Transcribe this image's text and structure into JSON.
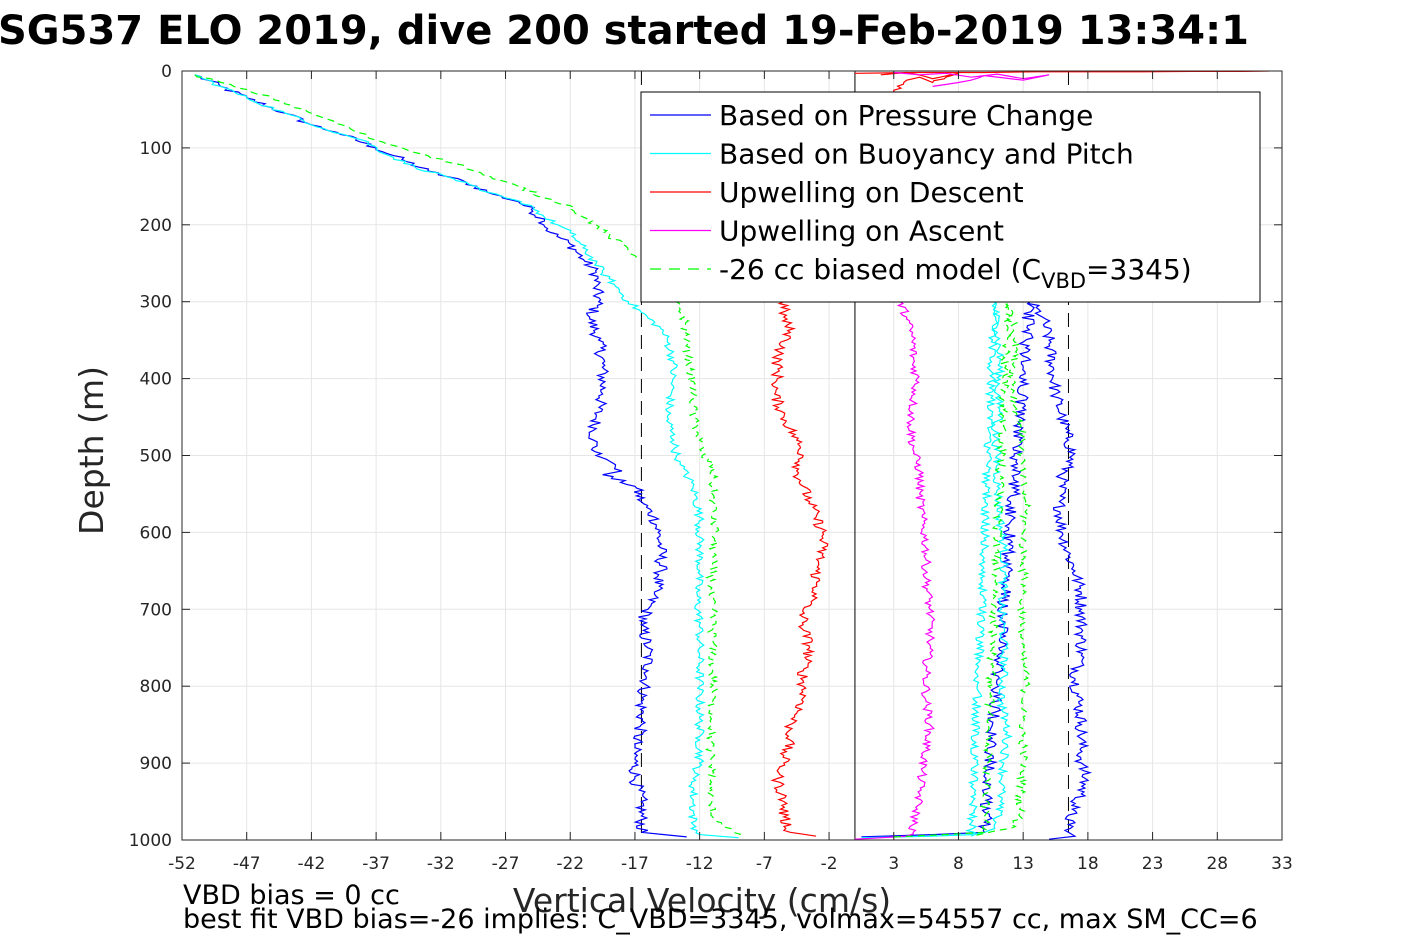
{
  "chart_data": {
    "type": "line",
    "title": "SG537 ELO 2019, dive 200 started 19-Feb-2019 13:34:1",
    "xlabel": "Vertical Velocity (cm/s)",
    "ylabel": "Depth (m)",
    "xlim": [
      -52,
      33
    ],
    "ylim": [
      0,
      1000
    ],
    "y_reversed": true,
    "grid": true,
    "xticks": [
      -52,
      -47,
      -42,
      -37,
      -32,
      -27,
      -22,
      -17,
      -12,
      -7,
      -2,
      3,
      8,
      13,
      18,
      23,
      28,
      33
    ],
    "yticks": [
      0,
      100,
      200,
      300,
      400,
      500,
      600,
      700,
      800,
      900,
      1000
    ],
    "legend_position": "top-right",
    "reference_lines": [
      {
        "x": 0,
        "style": "solid"
      },
      {
        "x": -16.5,
        "style": "dashed"
      },
      {
        "x": 16.5,
        "style": "dashed"
      }
    ],
    "series": [
      {
        "name": "Based on Pressure Change",
        "color": "#0000ff",
        "style": "solid",
        "jitter": 0.5,
        "segments": [
          {
            "x": [
              -51,
              -49,
              -47,
              -44,
              -42,
              -40,
              -37,
              -35,
              -33,
              -30,
              -28,
              -26,
              -25,
              -24,
              -23.5,
              -22,
              -21,
              -20,
              -20,
              -19.8,
              -20.5,
              -19.8,
              -19.5,
              -19.5,
              -20,
              -20.2,
              -20,
              -19.2,
              -18.5,
              -18,
              -19.5,
              -17,
              -16.5,
              -15.5,
              -15.2,
              -15,
              -15,
              -15.5,
              -16,
              -16.5,
              -16,
              -16,
              -16.5,
              -16.5,
              -17,
              -17,
              -17,
              -16.5,
              -16.5,
              -13
            ],
            "y": [
              5,
              20,
              35,
              55,
              70,
              80,
              100,
              115,
              130,
              145,
              160,
              170,
              180,
              195,
              210,
              225,
              245,
              262,
              280,
              300,
              320,
              350,
              380,
              420,
              450,
              480,
              500,
              505,
              512,
              520,
              525,
              540,
              560,
              580,
              600,
              620,
              650,
              680,
              700,
              720,
              750,
              780,
              820,
              850,
              880,
              900,
              920,
              950,
              990,
              996
            ]
          },
          {
            "x": [
              0.5,
              6,
              10,
              13.5,
              14.5,
              15,
              15.2,
              15.5,
              16,
              16.5,
              16.8,
              16,
              15.8,
              16,
              16.5,
              17,
              17.5,
              17.5,
              17.5,
              17.5,
              17,
              17.3,
              17.5,
              17.5,
              17.5,
              17.8,
              17.5,
              16.8,
              16.5,
              16.5,
              17,
              15
            ],
            "y": [
              996,
              993,
              990,
              300,
              320,
              350,
              380,
              420,
              450,
              480,
              500,
              530,
              560,
              600,
              630,
              650,
              680,
              700,
              730,
              760,
              790,
              820,
              850,
              880,
              900,
              920,
              940,
              960,
              980,
              990,
              995,
              999
            ]
          }
        ]
      },
      {
        "name": "Based on Buoyancy and Pitch",
        "color": "#00ffff",
        "style": "solid",
        "jitter": 0.35,
        "segments": [
          {
            "x": [
              -51,
              -49,
              -47,
              -44,
              -41,
              -38,
              -36,
              -34,
              -31,
              -29,
              -27,
              -25,
              -24,
              -22,
              -21,
              -20,
              -19.5,
              -19,
              -18.5,
              -17.5,
              -15,
              -14.5,
              -14,
              -14.2,
              -14.5,
              -14,
              -13.8,
              -13.5,
              -13.5,
              -12.5,
              -12,
              -12,
              -12,
              -12.2,
              -12,
              -12,
              -12,
              -12,
              -12,
              -12,
              -12.5,
              -12.5,
              -12.5,
              -12,
              -9
            ],
            "y": [
              5,
              20,
              35,
              55,
              75,
              90,
              110,
              125,
              140,
              155,
              165,
              175,
              190,
              210,
              230,
              250,
              262,
              270,
              280,
              300,
              335,
              350,
              380,
              420,
              450,
              480,
              500,
              508,
              512,
              540,
              580,
              620,
              650,
              680,
              720,
              760,
              800,
              840,
              870,
              900,
              920,
              950,
              980,
              993,
              997
            ]
          },
          {
            "x": [
              0.5,
              6,
              9,
              10.8,
              11,
              11.2,
              11,
              11.2,
              11.3,
              10.8,
              11,
              11,
              11.2,
              11.5,
              11.5,
              11.3,
              11.5,
              11.5,
              11.3,
              11.8,
              11.5,
              11.3,
              11,
              10.8,
              9
            ],
            "y": [
              997,
              995,
              993,
              300,
              340,
              380,
              420,
              440,
              450,
              460,
              500,
              540,
              580,
              620,
              660,
              700,
              740,
              780,
              820,
              860,
              900,
              940,
              970,
              985,
              995
            ]
          }
        ]
      },
      {
        "name": "Upwelling on Descent",
        "color": "#ff0000",
        "style": "solid",
        "jitter": 0.45,
        "segments": [
          {
            "x": [
              -5.5,
              -5.5,
              -5,
              -6,
              -6,
              -6.2,
              -5.5,
              -4.5,
              -4,
              -4.5,
              -4,
              -3.5,
              -3,
              -2.5,
              -2.5,
              -3,
              -3,
              -4,
              -4,
              -3.5,
              -4,
              -4,
              -4,
              -5,
              -5,
              -5.5,
              -5.5,
              -6,
              -5.5,
              -5.5,
              -5,
              -3
            ],
            "y": [
              300,
              320,
              340,
              370,
              400,
              420,
              450,
              480,
              500,
              520,
              540,
              560,
              580,
              600,
              620,
              650,
              680,
              700,
              720,
              750,
              780,
              800,
              820,
              850,
              870,
              890,
              900,
              920,
              950,
              970,
              990,
              995
            ]
          },
          {
            "x": [
              2,
              4,
              6,
              8,
              6,
              5,
              4,
              3,
              3
            ],
            "y": [
              5,
              2,
              10,
              3,
              15,
              8,
              12,
              25,
              30
            ]
          },
          {
            "x": [
              0,
              5,
              10,
              14,
              18,
              22,
              26,
              30,
              32
            ],
            "y": [
              3,
              2,
              2,
              1,
              1,
              1,
              0.5,
              0.5,
              0
            ]
          }
        ]
      },
      {
        "name": "Upwelling on Ascent",
        "color": "#ff00ff",
        "style": "solid",
        "jitter": 0.35,
        "segments": [
          {
            "x": [
              3.5,
              4,
              4.5,
              4.5,
              4.8,
              4.5,
              4.3,
              4.5,
              5,
              5,
              5.2,
              5.5,
              5.5,
              5.8,
              5.8,
              5.5,
              5.5,
              5.8,
              5.5,
              5.2,
              5,
              4.8,
              4.5,
              4.5,
              4.5,
              4,
              1,
              0
            ],
            "y": [
              300,
              320,
              350,
              380,
              400,
              430,
              460,
              490,
              520,
              550,
              580,
              620,
              660,
              700,
              740,
              780,
              820,
              850,
              880,
              910,
              940,
              960,
              980,
              990,
              992,
              995,
              998,
              999
            ]
          },
          {
            "x": [
              3,
              5,
              7,
              9,
              11,
              13,
              15,
              13,
              10,
              8,
              6
            ],
            "y": [
              2,
              5,
              3,
              8,
              4,
              10,
              5,
              12,
              6,
              15,
              20
            ]
          }
        ]
      },
      {
        "name": "-26 cc biased model (C<sub>VBD</sub>=3345)",
        "legend_main": "-26 cc biased model (C",
        "legend_sub": "VBD",
        "legend_tail": "=3345)",
        "color": "#00ff00",
        "style": "dashed",
        "jitter": 0.35,
        "segments": [
          {
            "x": [
              -51,
              -48,
              -45,
              -42,
              -39,
              -37,
              -35,
              -33,
              -30,
              -28,
              -26,
              -24,
              -22,
              -21,
              -20,
              -19,
              -18,
              -17,
              -15,
              -13.8,
              -13.2,
              -13,
              -12.8,
              -12.5,
              -12.5,
              -12,
              -11.8,
              -11,
              -11,
              -11,
              -10.8,
              -11,
              -11.2,
              -11,
              -11,
              -11,
              -11,
              -11,
              -11.2,
              -11,
              -11.2,
              -11,
              -9
            ],
            "y": [
              5,
              20,
              35,
              55,
              75,
              90,
              100,
              110,
              125,
              140,
              150,
              165,
              175,
              190,
              200,
              215,
              225,
              240,
              260,
              300,
              320,
              350,
              380,
              420,
              450,
              480,
              500,
              512,
              530,
              560,
              600,
              640,
              680,
              700,
              740,
              780,
              820,
              850,
              880,
              910,
              940,
              970,
              995
            ]
          },
          {
            "x": [
              3,
              7,
              10,
              11.8,
              12.2,
              12.5,
              12.2,
              12.5,
              12.8,
              13,
              12.8,
              13.2,
              13,
              13,
              13,
              12.8,
              13,
              13.2,
              13,
              13,
              13,
              12.8,
              12.8,
              12,
              9
            ],
            "y": [
              996,
              993,
              990,
              300,
              330,
              360,
              400,
              450,
              460,
              480,
              520,
              560,
              600,
              640,
              680,
              720,
              760,
              800,
              840,
              880,
              910,
              940,
              970,
              985,
              995
            ]
          }
        ]
      }
    ]
  },
  "notes": {
    "line1": "VBD bias = 0 cc",
    "line2": "best fit VBD bias=-26 implies: C_VBD=3345, volmax=54557 cc, max SM_CC=6"
  }
}
